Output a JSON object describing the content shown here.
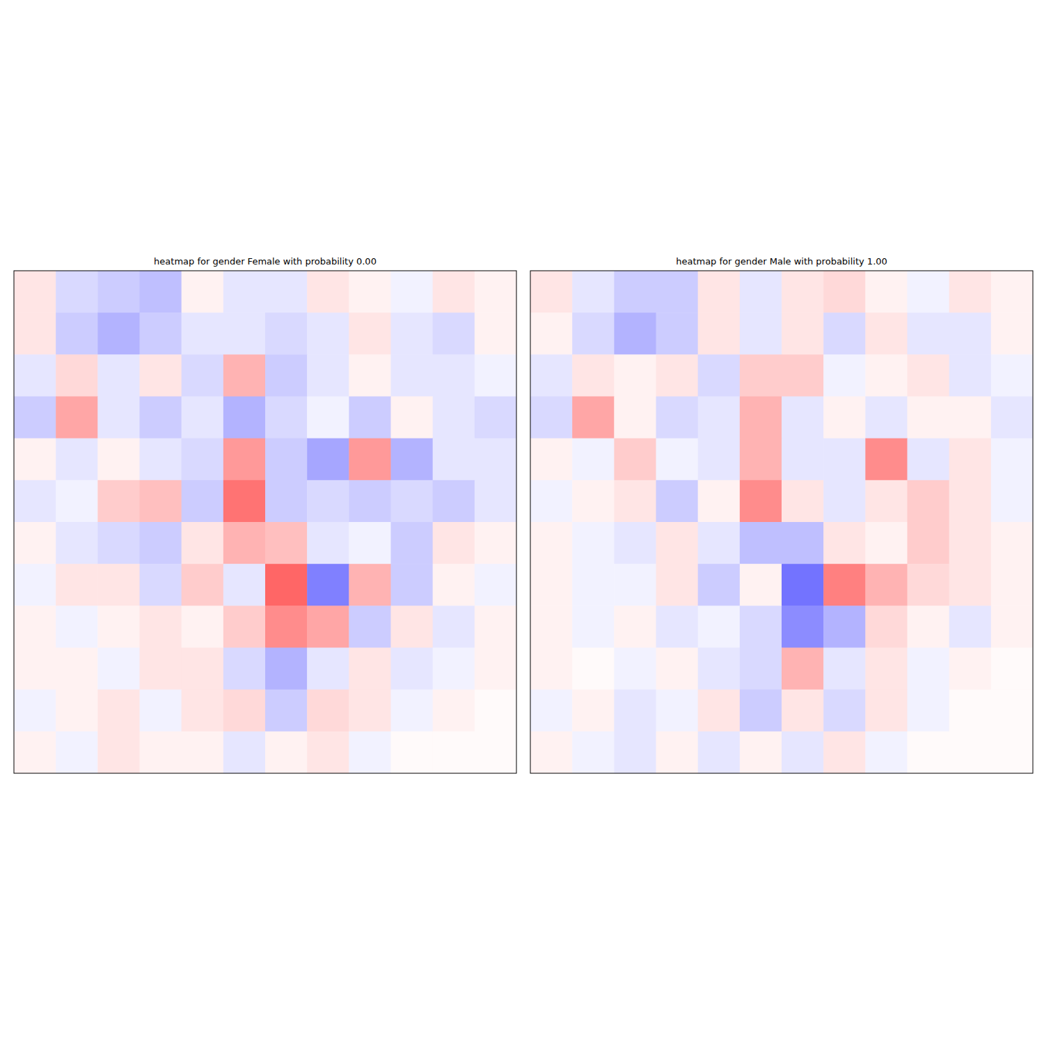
{
  "chart_data": [
    {
      "type": "heatmap",
      "title": "heatmap for gender Female with probability 0.00",
      "tick_labels": false,
      "color_range": [
        -1,
        1
      ],
      "cells": [
        [
          0.1,
          -0.15,
          -0.2,
          -0.25,
          0.05,
          -0.1,
          -0.1,
          0.1,
          0.05,
          -0.05,
          0.1,
          0.05
        ],
        [
          0.1,
          -0.2,
          -0.3,
          -0.2,
          -0.1,
          -0.1,
          -0.15,
          -0.1,
          0.1,
          -0.1,
          -0.15,
          0.05
        ],
        [
          -0.1,
          0.15,
          -0.1,
          0.1,
          -0.15,
          0.3,
          -0.2,
          -0.1,
          0.05,
          -0.1,
          -0.1,
          -0.05
        ],
        [
          -0.2,
          0.35,
          -0.1,
          -0.2,
          -0.1,
          -0.3,
          -0.15,
          -0.05,
          -0.2,
          0.05,
          -0.1,
          -0.15
        ],
        [
          0.05,
          -0.1,
          0.05,
          -0.1,
          -0.15,
          0.4,
          -0.2,
          -0.35,
          0.4,
          -0.3,
          -0.1,
          -0.1
        ],
        [
          -0.1,
          -0.05,
          0.2,
          0.25,
          -0.2,
          0.55,
          -0.2,
          -0.15,
          -0.2,
          -0.15,
          -0.2,
          -0.1
        ],
        [
          0.05,
          -0.1,
          -0.15,
          -0.2,
          0.1,
          0.3,
          0.25,
          -0.1,
          -0.05,
          -0.2,
          0.1,
          0.05
        ],
        [
          -0.05,
          0.1,
          0.1,
          -0.15,
          0.2,
          -0.1,
          0.6,
          -0.5,
          0.3,
          -0.2,
          0.05,
          -0.05
        ],
        [
          0.05,
          -0.05,
          0.05,
          0.1,
          0.05,
          0.2,
          0.45,
          0.35,
          -0.2,
          0.1,
          -0.1,
          0.05
        ],
        [
          0.05,
          0.05,
          -0.05,
          0.1,
          0.1,
          -0.15,
          -0.3,
          -0.1,
          0.1,
          -0.1,
          -0.05,
          0.05
        ],
        [
          -0.05,
          0.05,
          0.1,
          -0.05,
          0.1,
          0.15,
          -0.2,
          0.15,
          0.1,
          -0.05,
          0.05,
          0.02
        ],
        [
          0.05,
          -0.05,
          0.1,
          0.05,
          0.05,
          -0.1,
          0.05,
          0.1,
          -0.05,
          0.02,
          0.02,
          0.02
        ]
      ]
    },
    {
      "type": "heatmap",
      "title": "heatmap for gender Male with probability 1.00",
      "tick_labels": false,
      "color_range": [
        -1,
        1
      ],
      "cells": [
        [
          0.1,
          -0.1,
          -0.2,
          -0.2,
          0.1,
          -0.1,
          0.1,
          0.15,
          0.05,
          -0.05,
          0.1,
          0.05
        ],
        [
          0.05,
          -0.15,
          -0.3,
          -0.2,
          0.1,
          -0.1,
          0.1,
          -0.15,
          0.1,
          -0.1,
          -0.1,
          0.05
        ],
        [
          -0.1,
          0.1,
          0.05,
          0.1,
          -0.15,
          0.2,
          0.2,
          -0.05,
          0.05,
          0.1,
          -0.1,
          -0.05
        ],
        [
          -0.15,
          0.35,
          0.05,
          -0.15,
          -0.1,
          0.3,
          -0.1,
          0.05,
          -0.1,
          0.05,
          0.05,
          -0.1
        ],
        [
          0.05,
          -0.05,
          0.2,
          -0.05,
          -0.1,
          0.3,
          -0.1,
          -0.1,
          0.45,
          -0.1,
          0.1,
          -0.05
        ],
        [
          -0.05,
          0.05,
          0.1,
          -0.2,
          0.05,
          0.45,
          0.1,
          -0.1,
          0.1,
          0.2,
          0.1,
          -0.05
        ],
        [
          0.05,
          -0.05,
          -0.1,
          0.1,
          -0.1,
          -0.25,
          -0.25,
          0.1,
          0.05,
          0.2,
          0.1,
          0.05
        ],
        [
          0.05,
          -0.05,
          -0.05,
          0.1,
          -0.2,
          0.05,
          -0.55,
          0.5,
          0.3,
          0.15,
          0.1,
          0.05
        ],
        [
          0.05,
          -0.05,
          0.05,
          -0.1,
          -0.05,
          -0.15,
          -0.45,
          -0.3,
          0.15,
          0.05,
          -0.1,
          0.05
        ],
        [
          0.05,
          0.02,
          -0.05,
          0.05,
          -0.1,
          -0.15,
          0.3,
          -0.1,
          0.1,
          -0.05,
          0.05,
          0.02
        ],
        [
          -0.05,
          0.05,
          -0.1,
          -0.05,
          0.1,
          -0.2,
          0.1,
          -0.15,
          0.1,
          -0.05,
          0.02,
          0.02
        ],
        [
          0.05,
          -0.05,
          -0.1,
          0.05,
          -0.1,
          0.05,
          -0.1,
          0.1,
          -0.05,
          0.02,
          0.02,
          0.02
        ]
      ]
    }
  ]
}
